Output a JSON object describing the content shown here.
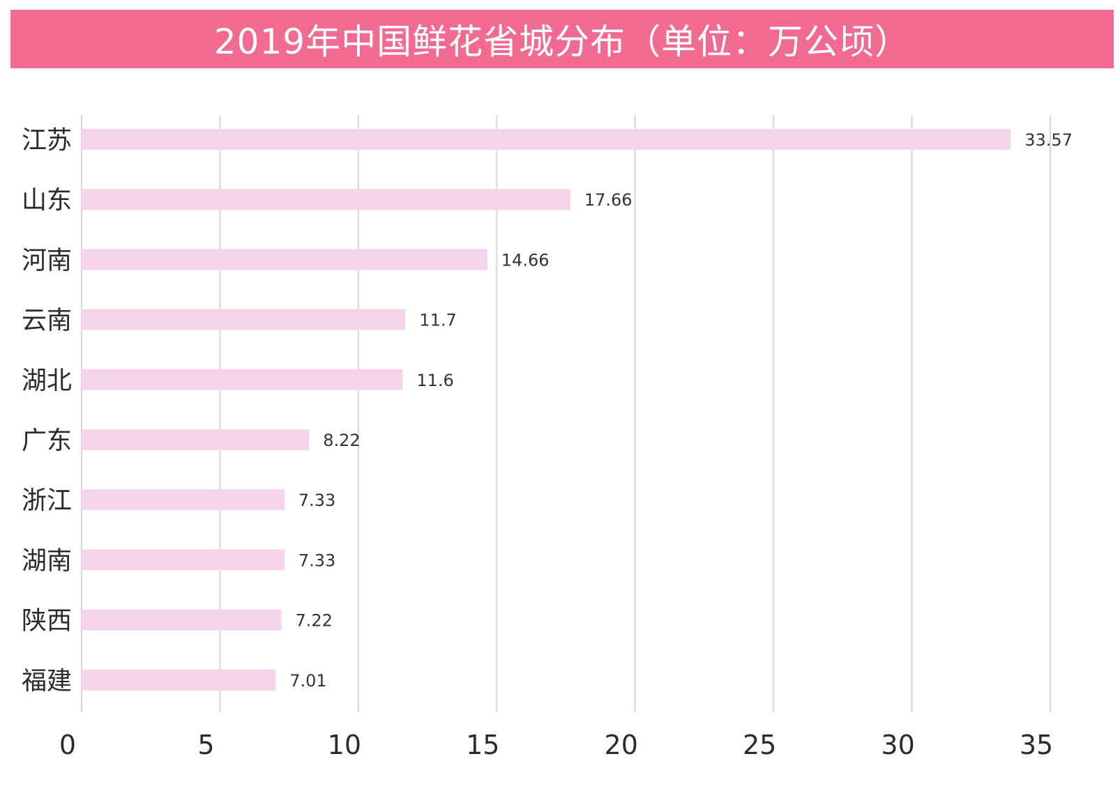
{
  "chart_data": {
    "type": "bar",
    "orientation": "horizontal",
    "title": "2019年中国鲜花省城分布（单位：万公顷）",
    "categories": [
      "江苏",
      "山东",
      "河南",
      "云南",
      "湖北",
      "广东",
      "浙江",
      "湖南",
      "陕西",
      "福建"
    ],
    "values": [
      33.57,
      17.66,
      14.66,
      11.7,
      11.6,
      8.22,
      7.33,
      7.33,
      7.22,
      7.01
    ],
    "value_labels": [
      "33.57",
      "17.66",
      "14.66",
      "11.7",
      "11.6",
      "8.22",
      "7.33",
      "7.33",
      "7.22",
      "7.01"
    ],
    "xlim": [
      0,
      35
    ],
    "xticks": [
      0,
      5,
      10,
      15,
      20,
      25,
      30,
      35
    ],
    "xlabel": "",
    "ylabel": "",
    "grid": "vertical",
    "colors": {
      "banner": "#f06b8f",
      "bar": "#f5d3ea",
      "grid": "#d6d6d6"
    }
  }
}
